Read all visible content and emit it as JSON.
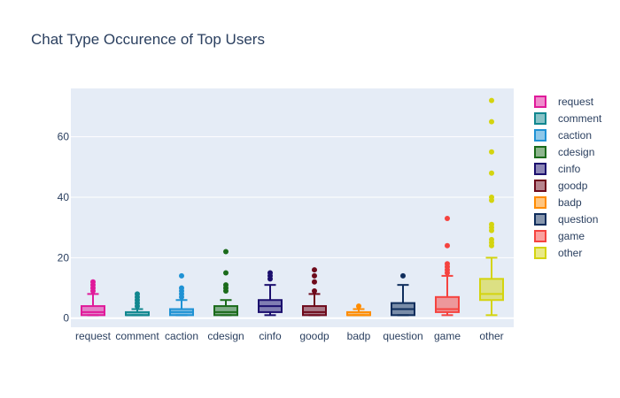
{
  "chart_data": {
    "type": "box",
    "title": "Chat Type Occurence of Top Users",
    "xlabel": "",
    "ylabel": "",
    "ylim": [
      -3,
      76
    ],
    "yticks": [
      0,
      20,
      40,
      60
    ],
    "grid": true,
    "legend_position": "right",
    "plot_background": "#e5ecf6",
    "series": [
      {
        "name": "request",
        "color": "#e01a9a",
        "min": 1,
        "q1": 1,
        "median": 2,
        "q3": 4,
        "max": 8,
        "outliers": [
          9,
          10,
          11,
          12
        ]
      },
      {
        "name": "comment",
        "color": "#11878f",
        "min": 1,
        "q1": 1,
        "median": 1,
        "q3": 2,
        "max": 3,
        "outliers": [
          4,
          5,
          6,
          7,
          8
        ]
      },
      {
        "name": "caction",
        "color": "#1f92d4",
        "min": 1,
        "q1": 1,
        "median": 2,
        "q3": 3,
        "max": 6,
        "outliers": [
          7,
          8,
          9,
          10,
          14
        ]
      },
      {
        "name": "cdesign",
        "color": "#1b6b1b",
        "min": 1,
        "q1": 1,
        "median": 2,
        "q3": 4,
        "max": 6,
        "outliers": [
          9,
          10,
          11,
          15,
          22
        ]
      },
      {
        "name": "cinfo",
        "color": "#1b0f6e",
        "min": 1,
        "q1": 2,
        "median": 4,
        "q3": 6,
        "max": 11,
        "outliers": [
          13,
          14,
          15
        ]
      },
      {
        "name": "goodp",
        "color": "#6e0a1b",
        "min": 1,
        "q1": 1,
        "median": 2,
        "q3": 4,
        "max": 8,
        "outliers": [
          9,
          12,
          14,
          16
        ]
      },
      {
        "name": "badp",
        "color": "#ff8c00",
        "min": 1,
        "q1": 1,
        "median": 1,
        "q3": 2,
        "max": 3,
        "outliers": [
          4
        ]
      },
      {
        "name": "question",
        "color": "#0f2d5c",
        "min": 1,
        "q1": 1,
        "median": 3,
        "q3": 5,
        "max": 11,
        "outliers": [
          14
        ]
      },
      {
        "name": "game",
        "color": "#f5433f",
        "min": 1,
        "q1": 2,
        "median": 3,
        "q3": 7,
        "max": 14,
        "outliers": [
          15,
          16,
          17,
          18,
          24,
          33
        ]
      },
      {
        "name": "other",
        "color": "#d4d40f",
        "min": 1,
        "q1": 6,
        "median": 8,
        "q3": 13,
        "max": 20,
        "outliers": [
          24,
          25,
          26,
          29,
          30,
          31,
          39,
          40,
          48,
          55,
          65,
          72
        ]
      }
    ]
  }
}
